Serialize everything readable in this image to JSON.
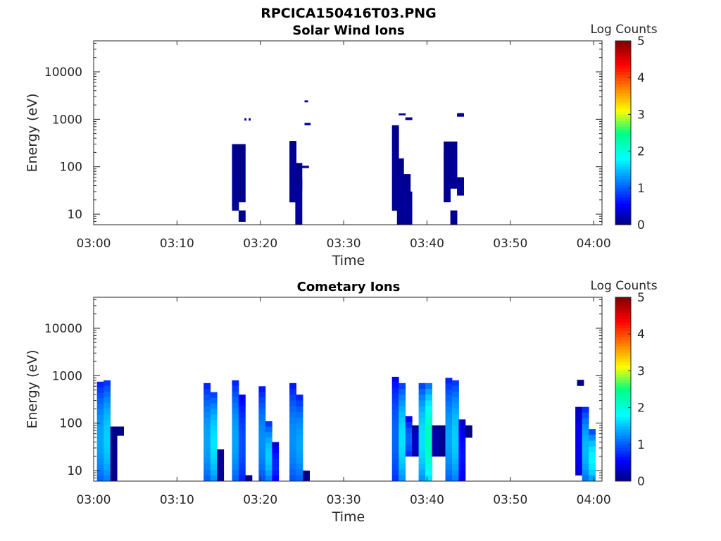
{
  "figure": {
    "title": "RPCICA150416T03.PNG"
  },
  "chart_data": [
    {
      "type": "heatmap",
      "title": "Solar Wind Ions",
      "xlabel": "Time",
      "ylabel": "Energy (eV)",
      "y_scale": "log",
      "ylim": [
        6,
        45000
      ],
      "xlim_minutes": [
        0,
        61
      ],
      "x_ticks": [
        "03:00",
        "03:10",
        "03:20",
        "03:30",
        "03:40",
        "03:50",
        "04:00"
      ],
      "y_ticks": [
        "10",
        "100",
        "1000",
        "10000"
      ],
      "colorbar": {
        "label": "Log Counts",
        "range": [
          0,
          5
        ],
        "ticks": [
          "0",
          "1",
          "2",
          "3",
          "4",
          "5"
        ]
      },
      "cell_note": "t0/t1 = minutes after 03:00, e0/e1 = energy in eV, v = log counts",
      "cells": [
        {
          "t0": 16.6,
          "t1": 17.4,
          "e0": 12,
          "e1": 300,
          "v": 0.1
        },
        {
          "t0": 17.4,
          "t1": 18.2,
          "e0": 18,
          "e1": 300,
          "v": 0.05
        },
        {
          "t0": 17.4,
          "t1": 18.2,
          "e0": 7,
          "e1": 12,
          "v": 0.1
        },
        {
          "t0": 18.1,
          "t1": 18.3,
          "e0": 950,
          "e1": 1050,
          "v": 0.1
        },
        {
          "t0": 18.6,
          "t1": 18.8,
          "e0": 950,
          "e1": 1050,
          "v": 0.1
        },
        {
          "t0": 23.5,
          "t1": 24.3,
          "e0": 18,
          "e1": 350,
          "v": 0.1
        },
        {
          "t0": 24.2,
          "t1": 25.0,
          "e0": 35,
          "e1": 120,
          "v": 0.05
        },
        {
          "t0": 24.2,
          "t1": 25.0,
          "e0": 6,
          "e1": 55,
          "v": 0.1
        },
        {
          "t0": 25.0,
          "t1": 25.8,
          "e0": 95,
          "e1": 105,
          "v": 0.1
        },
        {
          "t0": 25.3,
          "t1": 25.7,
          "e0": 2300,
          "e1": 2500,
          "v": 0.1
        },
        {
          "t0": 25.3,
          "t1": 26.0,
          "e0": 760,
          "e1": 840,
          "v": 0.1
        },
        {
          "t0": 35.8,
          "t1": 36.6,
          "e0": 12,
          "e1": 750,
          "v": 0.1
        },
        {
          "t0": 36.4,
          "t1": 37.2,
          "e0": 6,
          "e1": 150,
          "v": 0.1
        },
        {
          "t0": 36.6,
          "t1": 37.4,
          "e0": 1230,
          "e1": 1330,
          "v": 0.1
        },
        {
          "t0": 37.2,
          "t1": 38.0,
          "e0": 6,
          "e1": 70,
          "v": 0.1
        },
        {
          "t0": 37.4,
          "t1": 38.2,
          "e0": 980,
          "e1": 1100,
          "v": 0.1
        },
        {
          "t0": 37.6,
          "t1": 38.2,
          "e0": 6,
          "e1": 30,
          "v": 0.1
        },
        {
          "t0": 42.0,
          "t1": 42.8,
          "e0": 18,
          "e1": 340,
          "v": 0.1
        },
        {
          "t0": 42.8,
          "t1": 43.6,
          "e0": 35,
          "e1": 340,
          "v": 0.1
        },
        {
          "t0": 42.8,
          "t1": 43.6,
          "e0": 6,
          "e1": 12,
          "v": 0.1
        },
        {
          "t0": 43.6,
          "t1": 44.4,
          "e0": 25,
          "e1": 60,
          "v": 0.1
        },
        {
          "t0": 43.6,
          "t1": 44.4,
          "e0": 1150,
          "e1": 1350,
          "v": 0.1
        }
      ]
    },
    {
      "type": "heatmap",
      "title": "Cometary Ions",
      "xlabel": "Time",
      "ylabel": "Energy (eV)",
      "y_scale": "log",
      "ylim": [
        6,
        45000
      ],
      "xlim_minutes": [
        0,
        61
      ],
      "x_ticks": [
        "03:00",
        "03:10",
        "03:20",
        "03:30",
        "03:40",
        "03:50",
        "04:00"
      ],
      "y_ticks": [
        "10",
        "100",
        "1000",
        "10000"
      ],
      "colorbar": {
        "label": "Log Counts",
        "range": [
          0,
          5
        ],
        "ticks": [
          "0",
          "1",
          "2",
          "3",
          "4",
          "5"
        ]
      },
      "cell_note": "t0/t1 = minutes after 03:00, e0/e1 = energy in eV, v = log counts",
      "cells": [
        {
          "t0": 0.4,
          "t1": 1.2,
          "e0": 6,
          "e1": 750,
          "v": 1.3
        },
        {
          "t0": 1.2,
          "t1": 2.0,
          "e0": 6,
          "e1": 800,
          "v": 1.5
        },
        {
          "t0": 2.0,
          "t1": 2.8,
          "e0": 6,
          "e1": 85,
          "v": 0.05
        },
        {
          "t0": 2.8,
          "t1": 3.6,
          "e0": 55,
          "e1": 85,
          "v": 0.05
        },
        {
          "t0": 13.2,
          "t1": 14.0,
          "e0": 6,
          "e1": 700,
          "v": 1.3
        },
        {
          "t0": 14.0,
          "t1": 14.8,
          "e0": 6,
          "e1": 450,
          "v": 1.6
        },
        {
          "t0": 14.8,
          "t1": 15.6,
          "e0": 6,
          "e1": 28,
          "v": 0.1
        },
        {
          "t0": 16.6,
          "t1": 17.4,
          "e0": 6,
          "e1": 800,
          "v": 1.3
        },
        {
          "t0": 17.4,
          "t1": 18.2,
          "e0": 6,
          "e1": 400,
          "v": 0.9
        },
        {
          "t0": 18.2,
          "t1": 19.0,
          "e0": 6,
          "e1": 8,
          "v": 0.05
        },
        {
          "t0": 19.8,
          "t1": 20.6,
          "e0": 6,
          "e1": 600,
          "v": 1.2
        },
        {
          "t0": 20.6,
          "t1": 21.4,
          "e0": 6,
          "e1": 110,
          "v": 1.5
        },
        {
          "t0": 21.4,
          "t1": 22.2,
          "e0": 6,
          "e1": 40,
          "v": 0.7
        },
        {
          "t0": 23.5,
          "t1": 24.3,
          "e0": 6,
          "e1": 700,
          "v": 1.2
        },
        {
          "t0": 24.3,
          "t1": 25.1,
          "e0": 6,
          "e1": 400,
          "v": 1.3
        },
        {
          "t0": 25.1,
          "t1": 25.9,
          "e0": 6,
          "e1": 10,
          "v": 0.05
        },
        {
          "t0": 35.8,
          "t1": 36.6,
          "e0": 6,
          "e1": 950,
          "v": 1.0
        },
        {
          "t0": 36.6,
          "t1": 37.4,
          "e0": 6,
          "e1": 700,
          "v": 1.6
        },
        {
          "t0": 37.4,
          "t1": 38.2,
          "e0": 20,
          "e1": 140,
          "v": 1.0
        },
        {
          "t0": 38.2,
          "t1": 39.0,
          "e0": 20,
          "e1": 90,
          "v": 0.3
        },
        {
          "t0": 39.0,
          "t1": 39.8,
          "e0": 6,
          "e1": 700,
          "v": 1.6
        },
        {
          "t0": 39.8,
          "t1": 40.6,
          "e0": 6,
          "e1": 700,
          "v": 2.1
        },
        {
          "t0": 40.6,
          "t1": 41.4,
          "e0": 20,
          "e1": 90,
          "v": 0.2
        },
        {
          "t0": 41.4,
          "t1": 42.2,
          "e0": 20,
          "e1": 90,
          "v": 0.1
        },
        {
          "t0": 42.2,
          "t1": 43.0,
          "e0": 6,
          "e1": 900,
          "v": 1.3
        },
        {
          "t0": 43.0,
          "t1": 43.8,
          "e0": 6,
          "e1": 800,
          "v": 1.5
        },
        {
          "t0": 43.8,
          "t1": 44.6,
          "e0": 6,
          "e1": 120,
          "v": 0.6
        },
        {
          "t0": 44.6,
          "t1": 45.4,
          "e0": 50,
          "e1": 90,
          "v": 0.05
        },
        {
          "t0": 57.8,
          "t1": 58.6,
          "e0": 8,
          "e1": 220,
          "v": 0.5
        },
        {
          "t0": 58.6,
          "t1": 59.4,
          "e0": 6,
          "e1": 220,
          "v": 1.4
        },
        {
          "t0": 59.4,
          "t1": 60.2,
          "e0": 6,
          "e1": 75,
          "v": 1.7
        },
        {
          "t0": 58.0,
          "t1": 58.8,
          "e0": 620,
          "e1": 820,
          "v": 0.05
        }
      ]
    }
  ]
}
